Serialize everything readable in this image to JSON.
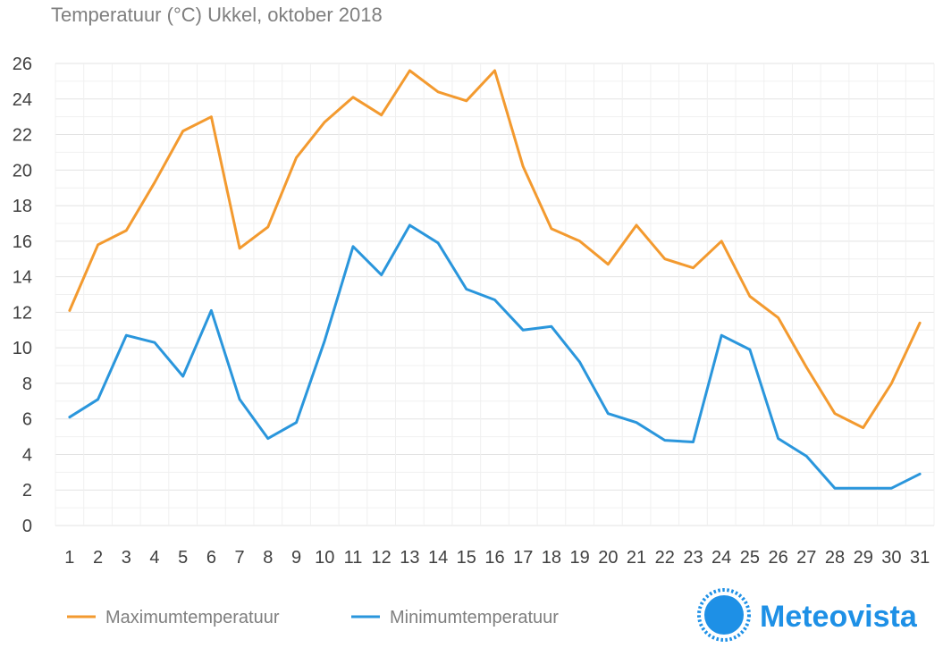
{
  "chart_data": {
    "type": "line",
    "title": "Temperatuur (°C)  Ukkel, oktober 2018",
    "xlabel": "",
    "ylabel": "",
    "x": [
      1,
      2,
      3,
      4,
      5,
      6,
      7,
      8,
      9,
      10,
      11,
      12,
      13,
      14,
      15,
      16,
      17,
      18,
      19,
      20,
      21,
      22,
      23,
      24,
      25,
      26,
      27,
      28,
      29,
      30,
      31
    ],
    "ylim": [
      0,
      26
    ],
    "yticks": [
      0,
      2,
      4,
      6,
      8,
      10,
      12,
      14,
      16,
      18,
      20,
      22,
      24,
      26
    ],
    "grid": true,
    "legend_position": "bottom-left",
    "series": [
      {
        "name": "Maximumtemperatuur",
        "color": "#f39a2f",
        "values": [
          12.1,
          15.8,
          16.6,
          19.3,
          22.2,
          23.0,
          15.6,
          16.8,
          20.7,
          22.7,
          24.1,
          23.1,
          25.6,
          24.4,
          23.9,
          25.6,
          20.2,
          16.7,
          16.0,
          14.7,
          16.9,
          15.0,
          14.5,
          16.0,
          12.9,
          11.7,
          8.9,
          6.3,
          5.5,
          8.0,
          11.4
        ]
      },
      {
        "name": "Minimumtemperatuur",
        "color": "#2a96dc",
        "values": [
          6.1,
          7.1,
          10.7,
          10.3,
          8.4,
          12.1,
          7.1,
          4.9,
          5.8,
          10.4,
          15.7,
          14.1,
          16.9,
          15.9,
          13.3,
          12.7,
          11.0,
          11.2,
          9.2,
          6.3,
          5.8,
          4.8,
          4.7,
          10.7,
          9.9,
          4.9,
          3.9,
          2.1,
          2.1,
          2.1,
          2.9
        ]
      }
    ]
  },
  "logo": {
    "text": "Meteovista",
    "icon": "sun-icon",
    "color": "#1e90e6"
  }
}
